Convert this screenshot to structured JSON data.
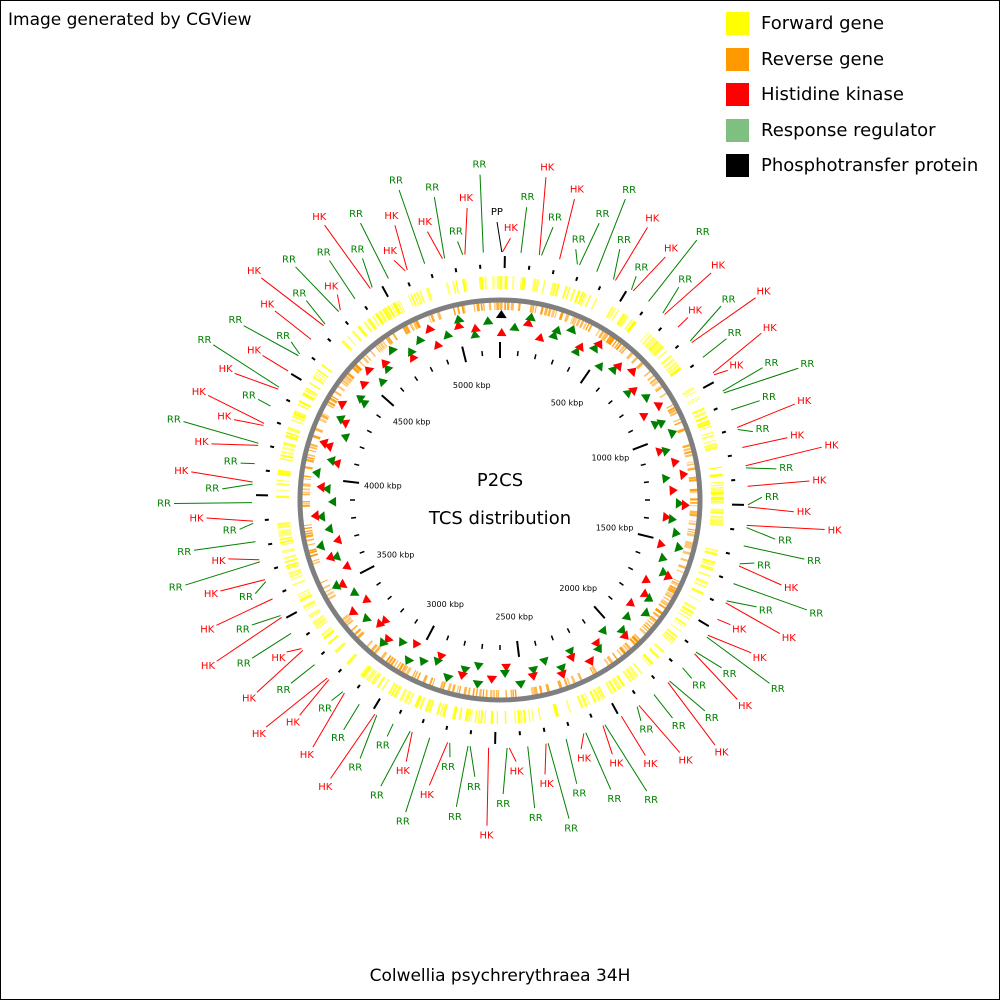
{
  "credit": "Image generated by CGView",
  "legend": [
    {
      "label": "Forward gene",
      "color": "#ffff00"
    },
    {
      "label": "Reverse gene",
      "color": "#ff9900"
    },
    {
      "label": "Histidine kinase",
      "color": "#ff0000"
    },
    {
      "label": "Response regulator",
      "color": "#7fbf7f"
    },
    {
      "label": "Phosphotransfer protein",
      "color": "#000000"
    }
  ],
  "map": {
    "title": "P2CS",
    "subtitle": "TCS distribution",
    "organism": "Colwellia psychrerythraea 34H",
    "tick_labels": [
      "500 kbp",
      "1000 kbp",
      "1500 kbp",
      "2000 kbp",
      "2500 kbp",
      "3000 kbp",
      "3500 kbp",
      "4000 kbp",
      "4500 kbp",
      "5000 kbp"
    ],
    "colors": {
      "forward": "#ffff00",
      "reverse": "#ff9900",
      "backbone": "#7f7f7f",
      "hk": "#ff0000",
      "rr": "#008000",
      "pp": "#000000"
    },
    "features": [
      {
        "label": "HK",
        "type": "hk"
      },
      {
        "label": "RR",
        "type": "rr"
      },
      {
        "label": "HK",
        "type": "hk"
      },
      {
        "label": "RR",
        "type": "rr"
      },
      {
        "label": "HK",
        "type": "hk"
      },
      {
        "label": "RR",
        "type": "rr"
      },
      {
        "label": "RR",
        "type": "rr"
      },
      {
        "label": "RR",
        "type": "rr"
      },
      {
        "label": "RR",
        "type": "rr"
      },
      {
        "label": "HK",
        "type": "hk"
      },
      {
        "label": "RR",
        "type": "rr"
      },
      {
        "label": "HK",
        "type": "hk"
      },
      {
        "label": "RR",
        "type": "rr"
      },
      {
        "label": "RR",
        "type": "rr"
      },
      {
        "label": "HK",
        "type": "hk"
      },
      {
        "label": "HK",
        "type": "hk"
      },
      {
        "label": "RR",
        "type": "rr"
      },
      {
        "label": "HK",
        "type": "hk"
      },
      {
        "label": "RR",
        "type": "rr"
      },
      {
        "label": "HK",
        "type": "hk"
      },
      {
        "label": "HK",
        "type": "hk"
      },
      {
        "label": "RR",
        "type": "rr"
      },
      {
        "label": "RR",
        "type": "rr"
      },
      {
        "label": "RR",
        "type": "rr"
      },
      {
        "label": "HK",
        "type": "hk"
      },
      {
        "label": "RR",
        "type": "rr"
      },
      {
        "label": "HK",
        "type": "hk"
      },
      {
        "label": "HK",
        "type": "hk"
      },
      {
        "label": "RR",
        "type": "rr"
      },
      {
        "label": "HK",
        "type": "hk"
      },
      {
        "label": "RR",
        "type": "rr"
      },
      {
        "label": "HK",
        "type": "hk"
      },
      {
        "label": "HK",
        "type": "hk"
      },
      {
        "label": "RR",
        "type": "rr"
      },
      {
        "label": "RR",
        "type": "rr"
      },
      {
        "label": "RR",
        "type": "rr"
      },
      {
        "label": "HK",
        "type": "hk"
      },
      {
        "label": "RR",
        "type": "rr"
      },
      {
        "label": "RR",
        "type": "rr"
      },
      {
        "label": "HK",
        "type": "hk"
      },
      {
        "label": "HK",
        "type": "hk"
      },
      {
        "label": "HK",
        "type": "hk"
      },
      {
        "label": "RR",
        "type": "rr"
      },
      {
        "label": "RR",
        "type": "rr"
      },
      {
        "label": "HK",
        "type": "hk"
      },
      {
        "label": "RR",
        "type": "rr"
      },
      {
        "label": "RR",
        "type": "rr"
      },
      {
        "label": "HK",
        "type": "hk"
      },
      {
        "label": "RR",
        "type": "rr"
      },
      {
        "label": "HK",
        "type": "hk"
      },
      {
        "label": "RR",
        "type": "rr"
      },
      {
        "label": "HK",
        "type": "hk"
      },
      {
        "label": "RR",
        "type": "rr"
      },
      {
        "label": "HK",
        "type": "hk"
      },
      {
        "label": "RR",
        "type": "rr"
      },
      {
        "label": "HK",
        "type": "hk"
      },
      {
        "label": "RR",
        "type": "rr"
      },
      {
        "label": "RR",
        "type": "rr"
      },
      {
        "label": "HK",
        "type": "hk"
      },
      {
        "label": "RR",
        "type": "rr"
      },
      {
        "label": "HK",
        "type": "hk"
      },
      {
        "label": "RR",
        "type": "rr"
      },
      {
        "label": "HK",
        "type": "hk"
      },
      {
        "label": "RR",
        "type": "rr"
      },
      {
        "label": "RR",
        "type": "rr"
      },
      {
        "label": "RR",
        "type": "rr"
      },
      {
        "label": "HK",
        "type": "hk"
      },
      {
        "label": "RR",
        "type": "rr"
      },
      {
        "label": "HK",
        "type": "hk"
      },
      {
        "label": "RR",
        "type": "rr"
      },
      {
        "label": "RR",
        "type": "rr"
      },
      {
        "label": "RR",
        "type": "rr"
      },
      {
        "label": "HK",
        "type": "hk"
      },
      {
        "label": "RR",
        "type": "rr"
      },
      {
        "label": "HK",
        "type": "hk"
      },
      {
        "label": "RR",
        "type": "rr"
      },
      {
        "label": "HK",
        "type": "hk"
      },
      {
        "label": "HK",
        "type": "hk"
      },
      {
        "label": "RR",
        "type": "rr"
      },
      {
        "label": "HK",
        "type": "hk"
      },
      {
        "label": "HK",
        "type": "hk"
      },
      {
        "label": "RR",
        "type": "rr"
      },
      {
        "label": "HK",
        "type": "hk"
      },
      {
        "label": "RR",
        "type": "rr"
      },
      {
        "label": "HK",
        "type": "hk"
      },
      {
        "label": "RR",
        "type": "rr"
      },
      {
        "label": "HK",
        "type": "hk"
      },
      {
        "label": "RR",
        "type": "rr"
      },
      {
        "label": "HK",
        "type": "hk"
      },
      {
        "label": "RR",
        "type": "rr"
      },
      {
        "label": "RR",
        "type": "rr"
      },
      {
        "label": "HK",
        "type": "hk"
      },
      {
        "label": "RR",
        "type": "rr"
      },
      {
        "label": "RR",
        "type": "rr"
      },
      {
        "label": "HK",
        "type": "hk"
      },
      {
        "label": "RR",
        "type": "rr"
      },
      {
        "label": "HK",
        "type": "hk"
      },
      {
        "label": "RR",
        "type": "rr"
      },
      {
        "label": "HK",
        "type": "hk"
      },
      {
        "label": "HK",
        "type": "hk"
      },
      {
        "label": "RR",
        "type": "rr"
      },
      {
        "label": "HK",
        "type": "hk"
      },
      {
        "label": "RR",
        "type": "rr"
      },
      {
        "label": "HK",
        "type": "hk"
      },
      {
        "label": "RR",
        "type": "rr"
      },
      {
        "label": "RR",
        "type": "rr"
      },
      {
        "label": "HK",
        "type": "hk"
      },
      {
        "label": "HK",
        "type": "hk"
      },
      {
        "label": "RR",
        "type": "rr"
      },
      {
        "label": "RR",
        "type": "rr"
      },
      {
        "label": "HK",
        "type": "hk"
      },
      {
        "label": "RR",
        "type": "rr"
      },
      {
        "label": "HK",
        "type": "hk"
      },
      {
        "label": "RR",
        "type": "rr"
      },
      {
        "label": "RR",
        "type": "rr"
      },
      {
        "label": "HK",
        "type": "hk"
      },
      {
        "label": "HK",
        "type": "hk"
      },
      {
        "label": "RR",
        "type": "rr"
      },
      {
        "label": "HK",
        "type": "hk"
      },
      {
        "label": "RR",
        "type": "rr"
      },
      {
        "label": "RR",
        "type": "rr"
      },
      {
        "label": "HK",
        "type": "hk"
      },
      {
        "label": "RR",
        "type": "rr"
      },
      {
        "label": "PP",
        "type": "pp"
      }
    ]
  }
}
